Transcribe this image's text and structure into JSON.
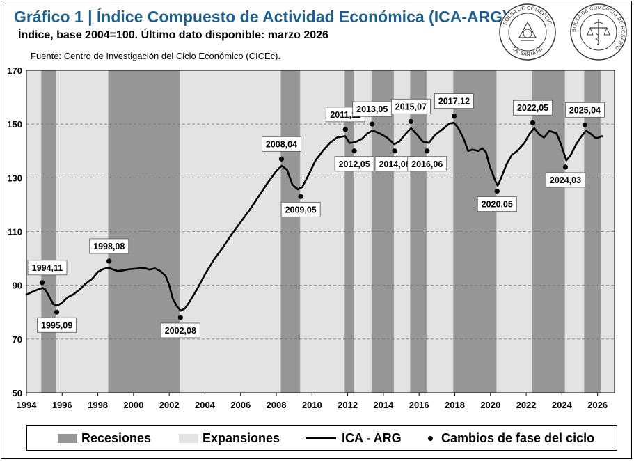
{
  "header": {
    "title": "Gráfico 1 | Índice Compuesto de Actividad Económica (ICA-ARG).",
    "subtitle": "Índice, base 2004=100. Último dato disponible: marzo 2026",
    "source": "Fuente: Centro de Investigación del Ciclo Económico (CICEc)."
  },
  "logos": {
    "left": {
      "name": "bolsa-comercio-santa-fe-seal",
      "text": "BOLSA DE COMERCIO DE SANTA FE"
    },
    "right": {
      "name": "bolsa-comercio-rosario-seal",
      "text": "BOLSA DE COMERCIO DE ROSARIO"
    }
  },
  "colors": {
    "recession": "#969696",
    "expansion": "#e3e3e3",
    "line": "#000000",
    "title": "#1f5f8b"
  },
  "legend": {
    "recessions": "Recesiones",
    "expansions": "Expansiones",
    "line": "ICA - ARG",
    "dots": "Cambios de fase del ciclo"
  },
  "chart_data": {
    "type": "line",
    "xlim": [
      1994.0,
      2026.95
    ],
    "ylim": [
      50,
      170
    ],
    "y_ticks": [
      50,
      70,
      90,
      110,
      130,
      150,
      170
    ],
    "x_ticks": [
      1994,
      1996,
      1998,
      2000,
      2002,
      2004,
      2006,
      2008,
      2010,
      2012,
      2014,
      2016,
      2018,
      2020,
      2022,
      2024,
      2026
    ],
    "grid": "horizontal-dashed",
    "legend_position": "bottom",
    "recessions": [
      {
        "start": "1994,11",
        "end": "1995,09"
      },
      {
        "start": "1998,08",
        "end": "2002,08"
      },
      {
        "start": "2008,04",
        "end": "2009,05"
      },
      {
        "start": "2011,11",
        "end": "2012,05"
      },
      {
        "start": "2013,05",
        "end": "2014,08"
      },
      {
        "start": "2015,07",
        "end": "2016,06"
      },
      {
        "start": "2017,12",
        "end": "2020,05"
      },
      {
        "start": "2022,05",
        "end": "2024,03"
      },
      {
        "start": "2025,04",
        "end": "2026,03"
      }
    ],
    "series": [
      {
        "name": "ICA - ARG",
        "points": [
          [
            1994.0,
            86.5
          ],
          [
            1994.3,
            87.5
          ],
          [
            1994.6,
            88.3
          ],
          [
            1994.9,
            89.0
          ],
          [
            1995.05,
            88.5
          ],
          [
            1995.3,
            85.5
          ],
          [
            1995.5,
            83.0
          ],
          [
            1995.75,
            82.5
          ],
          [
            1996.0,
            83.5
          ],
          [
            1996.3,
            85.5
          ],
          [
            1996.6,
            86.5
          ],
          [
            1997.0,
            88.5
          ],
          [
            1997.3,
            90.5
          ],
          [
            1997.7,
            92.5
          ],
          [
            1998.0,
            95.0
          ],
          [
            1998.3,
            96.0
          ],
          [
            1998.6,
            96.6
          ],
          [
            1998.8,
            96.0
          ],
          [
            1999.1,
            95.3
          ],
          [
            1999.4,
            95.5
          ],
          [
            1999.8,
            96.0
          ],
          [
            2000.2,
            96.2
          ],
          [
            2000.6,
            96.5
          ],
          [
            2000.9,
            95.8
          ],
          [
            2001.2,
            96.3
          ],
          [
            2001.5,
            95.3
          ],
          [
            2001.8,
            93.5
          ],
          [
            2002.0,
            90.0
          ],
          [
            2002.2,
            85.0
          ],
          [
            2002.45,
            82.0
          ],
          [
            2002.65,
            80.5
          ],
          [
            2002.9,
            81.5
          ],
          [
            2003.2,
            84.5
          ],
          [
            2003.6,
            89.0
          ],
          [
            2004.0,
            94.0
          ],
          [
            2004.5,
            99.5
          ],
          [
            2005.0,
            104.0
          ],
          [
            2005.5,
            109.0
          ],
          [
            2006.0,
            113.5
          ],
          [
            2006.5,
            118.0
          ],
          [
            2007.0,
            123.0
          ],
          [
            2007.5,
            128.0
          ],
          [
            2008.0,
            132.5
          ],
          [
            2008.3,
            134.5
          ],
          [
            2008.6,
            133.0
          ],
          [
            2008.9,
            127.5
          ],
          [
            2009.2,
            125.7
          ],
          [
            2009.45,
            126.5
          ],
          [
            2009.8,
            131.0
          ],
          [
            2010.2,
            136.5
          ],
          [
            2010.6,
            140.0
          ],
          [
            2011.0,
            143.0
          ],
          [
            2011.4,
            145.0
          ],
          [
            2011.85,
            145.5
          ],
          [
            2012.1,
            143.0
          ],
          [
            2012.4,
            143.2
          ],
          [
            2012.8,
            144.5
          ],
          [
            2013.1,
            146.5
          ],
          [
            2013.4,
            147.6
          ],
          [
            2013.8,
            146.5
          ],
          [
            2014.2,
            145.0
          ],
          [
            2014.6,
            142.5
          ],
          [
            2014.9,
            143.5
          ],
          [
            2015.2,
            146.0
          ],
          [
            2015.55,
            148.5
          ],
          [
            2015.9,
            146.0
          ],
          [
            2016.2,
            143.5
          ],
          [
            2016.55,
            143.0
          ],
          [
            2016.9,
            146.0
          ],
          [
            2017.3,
            148.0
          ],
          [
            2017.7,
            150.2
          ],
          [
            2017.95,
            150.5
          ],
          [
            2018.2,
            148.5
          ],
          [
            2018.5,
            144.5
          ],
          [
            2018.75,
            140.0
          ],
          [
            2019.0,
            140.5
          ],
          [
            2019.3,
            140.0
          ],
          [
            2019.55,
            141.0
          ],
          [
            2019.75,
            139.5
          ],
          [
            2019.95,
            134.5
          ],
          [
            2020.2,
            130.0
          ],
          [
            2020.4,
            127.0
          ],
          [
            2020.6,
            130.0
          ],
          [
            2020.9,
            135.0
          ],
          [
            2021.2,
            138.5
          ],
          [
            2021.5,
            140.0
          ],
          [
            2021.9,
            143.0
          ],
          [
            2022.2,
            146.5
          ],
          [
            2022.45,
            148.5
          ],
          [
            2022.75,
            146.0
          ],
          [
            2023.0,
            145.0
          ],
          [
            2023.3,
            147.5
          ],
          [
            2023.7,
            146.5
          ],
          [
            2023.95,
            142.5
          ],
          [
            2024.25,
            136.5
          ],
          [
            2024.5,
            138.5
          ],
          [
            2024.8,
            142.5
          ],
          [
            2025.1,
            145.5
          ],
          [
            2025.35,
            147.5
          ],
          [
            2025.6,
            146.5
          ],
          [
            2025.85,
            145.0
          ],
          [
            2026.0,
            144.8
          ],
          [
            2026.25,
            145.5
          ]
        ]
      }
    ],
    "phase_changes": [
      {
        "label": "1994,11",
        "x": 1994.875,
        "y": 91.0,
        "label_side": "above"
      },
      {
        "label": "1995,09",
        "x": 1995.7,
        "y": 80.0,
        "label_side": "below"
      },
      {
        "label": "1998,08",
        "x": 1998.63,
        "y": 99.0,
        "label_side": "above"
      },
      {
        "label": "2002,08",
        "x": 2002.63,
        "y": 78.0,
        "label_side": "below"
      },
      {
        "label": "2008,04",
        "x": 2008.29,
        "y": 137.0,
        "label_side": "above"
      },
      {
        "label": "2009,05",
        "x": 2009.37,
        "y": 123.0,
        "label_side": "below"
      },
      {
        "label": "2011,11",
        "x": 2011.87,
        "y": 148.0,
        "label_side": "above"
      },
      {
        "label": "2012,05",
        "x": 2012.37,
        "y": 140.0,
        "label_side": "below"
      },
      {
        "label": "2013,05",
        "x": 2013.37,
        "y": 150.0,
        "label_side": "above"
      },
      {
        "label": "2014,08",
        "x": 2014.63,
        "y": 140.0,
        "label_side": "below"
      },
      {
        "label": "2015,07",
        "x": 2015.54,
        "y": 151.0,
        "label_side": "above"
      },
      {
        "label": "2016,06",
        "x": 2016.45,
        "y": 140.0,
        "label_side": "below"
      },
      {
        "label": "2017,12",
        "x": 2017.96,
        "y": 153.0,
        "label_side": "above"
      },
      {
        "label": "2020,05",
        "x": 2020.37,
        "y": 125.0,
        "label_side": "below"
      },
      {
        "label": "2022,05",
        "x": 2022.37,
        "y": 150.5,
        "label_side": "above"
      },
      {
        "label": "2024,03",
        "x": 2024.2,
        "y": 134.0,
        "label_side": "below"
      },
      {
        "label": "2025,04",
        "x": 2025.29,
        "y": 149.7,
        "label_side": "above"
      }
    ]
  }
}
